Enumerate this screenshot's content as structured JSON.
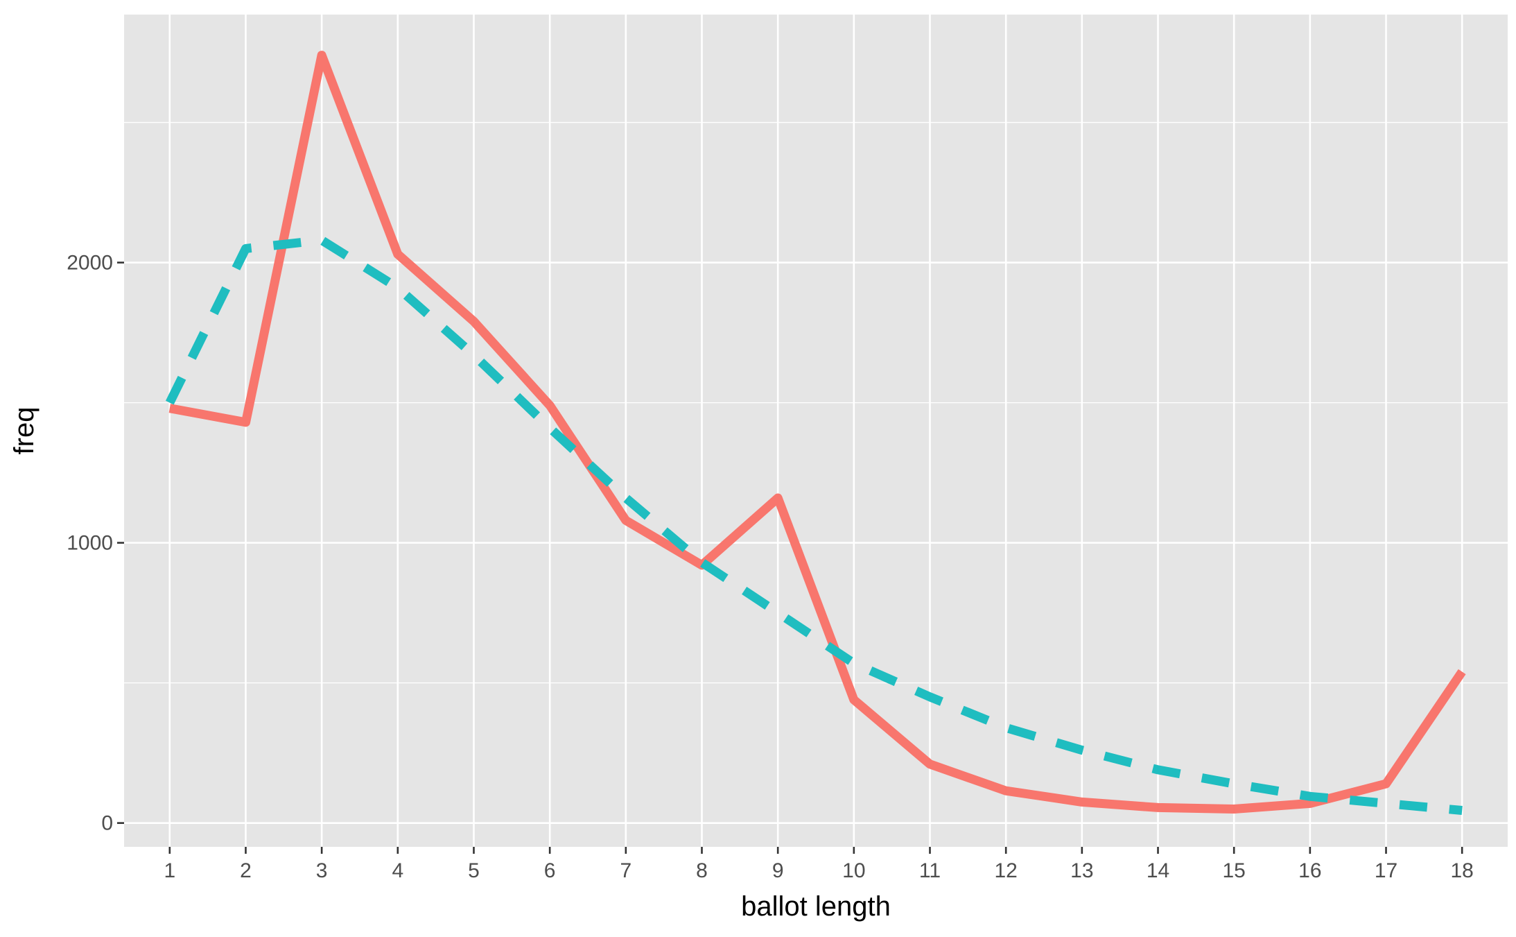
{
  "chart_data": {
    "type": "line",
    "xlabel": "ballot length",
    "ylabel": "freq",
    "title": "",
    "x": [
      1,
      2,
      3,
      4,
      5,
      6,
      7,
      8,
      9,
      10,
      11,
      12,
      13,
      14,
      15,
      16,
      17,
      18
    ],
    "x_tick_labels": [
      "1",
      "2",
      "3",
      "4",
      "5",
      "6",
      "7",
      "8",
      "9",
      "10",
      "11",
      "12",
      "13",
      "14",
      "15",
      "16",
      "17",
      "18"
    ],
    "y_ticks": [
      0,
      1000,
      2000
    ],
    "y_tick_labels": [
      "0",
      "1000",
      "2000"
    ],
    "xlim": [
      0.4,
      18.6
    ],
    "ylim": [
      -85,
      2885
    ],
    "grid": true,
    "legend": "none",
    "background": "#e5e5e5",
    "series": [
      {
        "style": "solid",
        "color": "#f8766d",
        "values": [
          1480,
          1430,
          2740,
          2030,
          1790,
          1490,
          1080,
          920,
          1160,
          440,
          210,
          115,
          75,
          55,
          50,
          70,
          140,
          540
        ]
      },
      {
        "style": "dashed",
        "color": "#1fbdc0",
        "values": [
          1500,
          2050,
          2080,
          1910,
          1670,
          1410,
          1160,
          930,
          750,
          570,
          450,
          340,
          260,
          190,
          140,
          95,
          70,
          45
        ]
      }
    ]
  }
}
